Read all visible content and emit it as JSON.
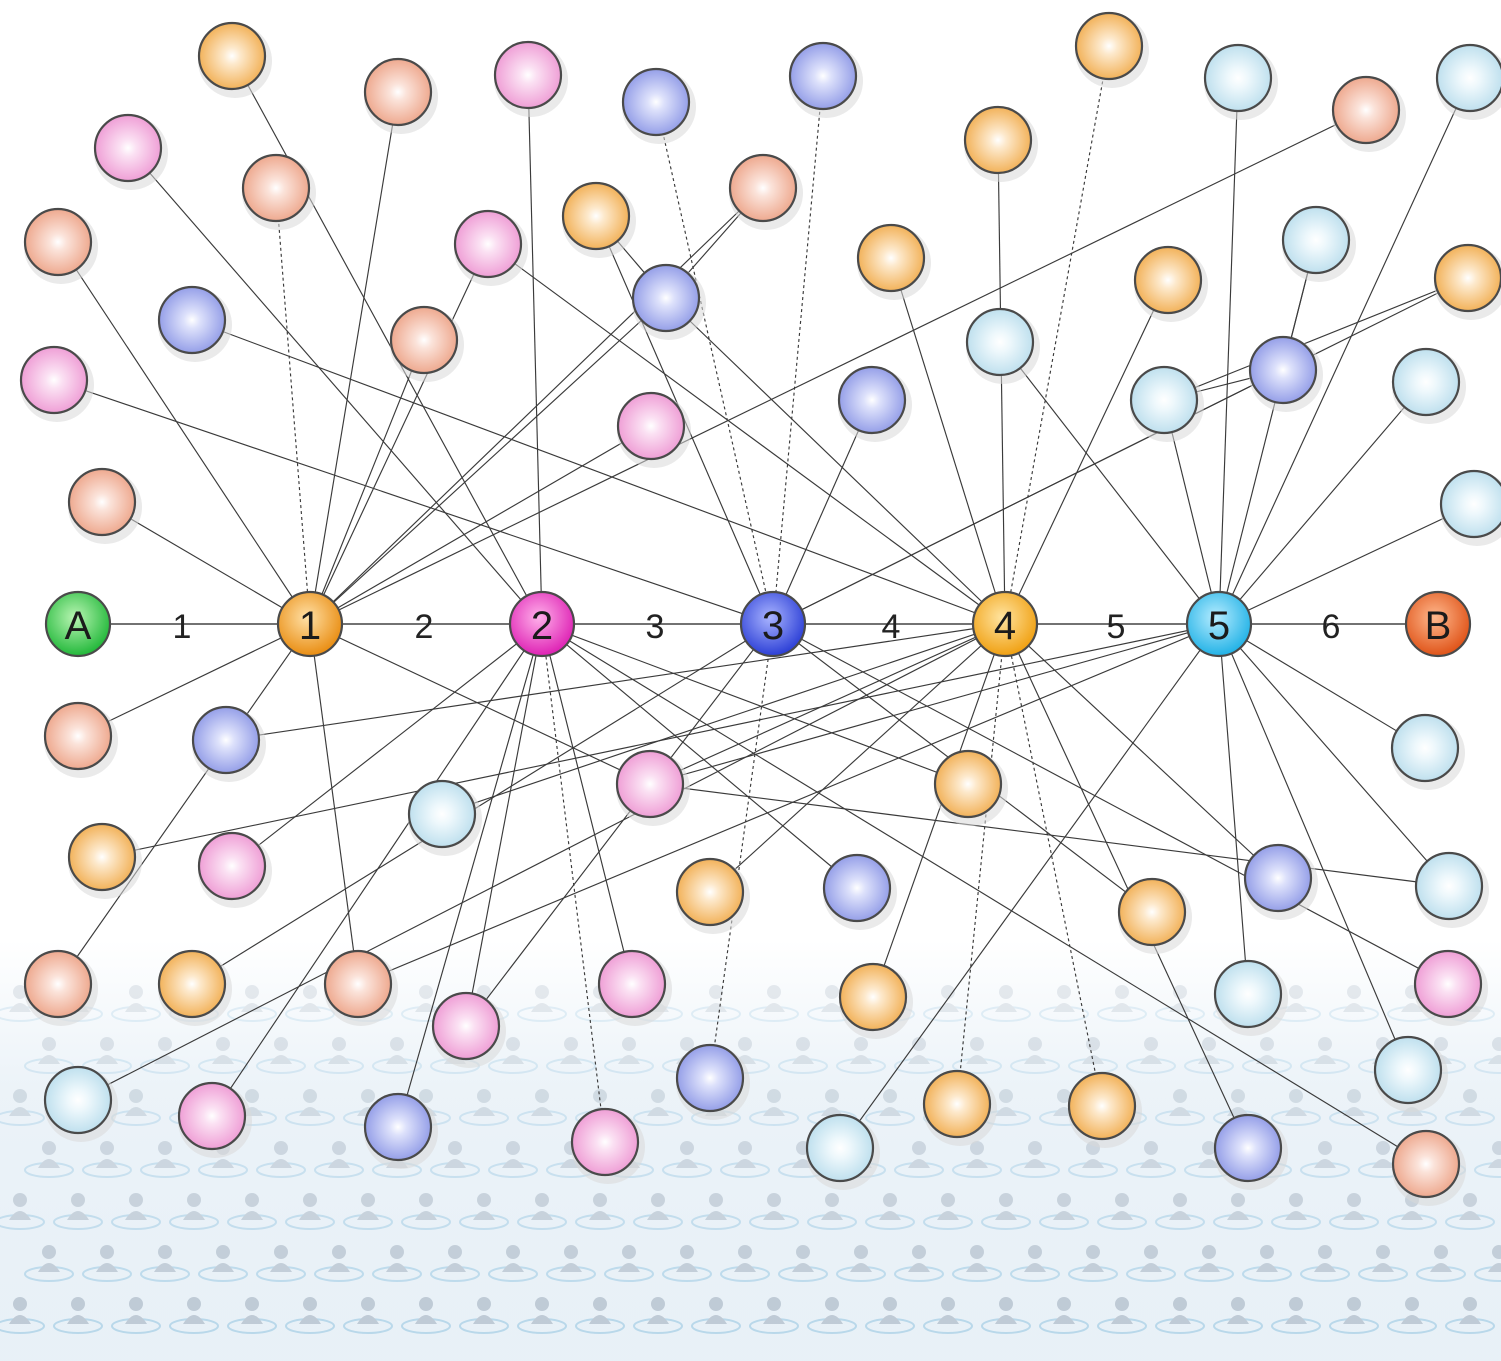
{
  "diagram": {
    "main_nodes": [
      {
        "id": "A",
        "label": "A",
        "color": "#2ec94a"
      },
      {
        "id": "1",
        "label": "1",
        "color": "#f3a020"
      },
      {
        "id": "2",
        "label": "2",
        "color": "#e93cc0"
      },
      {
        "id": "3",
        "label": "3",
        "color": "#3a4fe0"
      },
      {
        "id": "4",
        "label": "4",
        "color": "#f5ad1c"
      },
      {
        "id": "5",
        "label": "5",
        "color": "#3cc0ec"
      },
      {
        "id": "B",
        "label": "B",
        "color": "#e8612a"
      }
    ],
    "chain_steps": [
      {
        "from": "A",
        "to": "1",
        "label": "1"
      },
      {
        "from": "1",
        "to": "2",
        "label": "2"
      },
      {
        "from": "2",
        "to": "3",
        "label": "3"
      },
      {
        "from": "3",
        "to": "4",
        "label": "4"
      },
      {
        "from": "4",
        "to": "5",
        "label": "5"
      },
      {
        "from": "5",
        "to": "B",
        "label": "6"
      }
    ],
    "palette": {
      "orange": "#f5be72",
      "peach": "#f3bba6",
      "pink": "#f4b2df",
      "lavender": "#a9b1ee",
      "ice": "#cfe7f2"
    }
  }
}
